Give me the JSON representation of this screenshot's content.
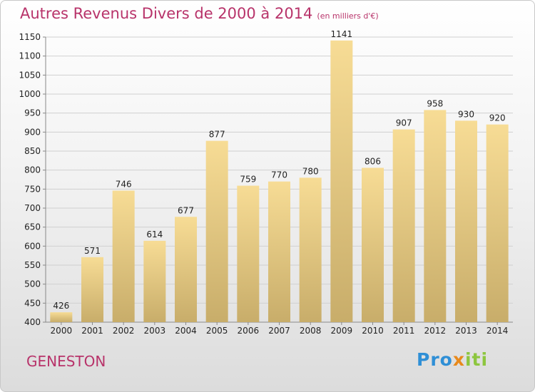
{
  "chart_data": {
    "type": "bar",
    "title": "Autres Revenus Divers de 2000 à 2014",
    "subtitle": "(en milliers d'€)",
    "categories": [
      "2000",
      "2001",
      "2002",
      "2003",
      "2004",
      "2005",
      "2006",
      "2007",
      "2008",
      "2009",
      "2010",
      "2011",
      "2012",
      "2013",
      "2014"
    ],
    "values": [
      426,
      571,
      746,
      614,
      677,
      877,
      759,
      770,
      780,
      1141,
      806,
      907,
      958,
      930,
      920
    ],
    "ylim": [
      400,
      1150
    ],
    "yticks": [
      400,
      450,
      500,
      550,
      600,
      650,
      700,
      750,
      800,
      850,
      900,
      950,
      1000,
      1050,
      1100,
      1150
    ],
    "grid": true,
    "colors": {
      "bar_light": "#f7dc95",
      "bar_dark": "#c8ad6a",
      "grid": "#d0d0d0",
      "accent": "#b8336a"
    }
  },
  "place": "GENESTON",
  "logo": {
    "parts": [
      "Pro",
      "x",
      "iti"
    ]
  }
}
